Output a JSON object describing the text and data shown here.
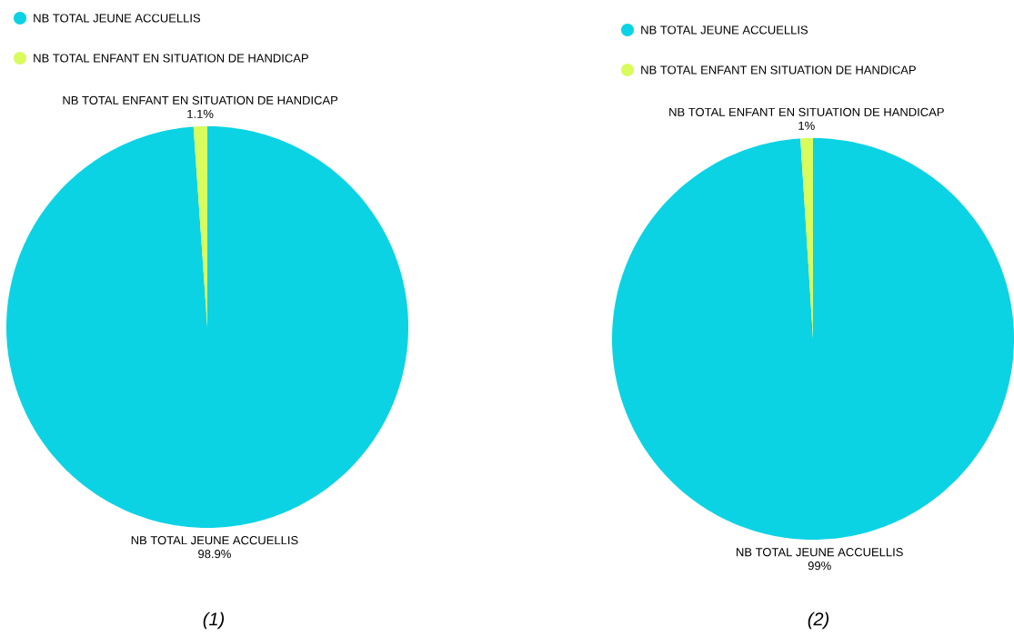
{
  "chart_data": [
    {
      "type": "pie",
      "categories": [
        "NB TOTAL JEUNE ACCUELLIS",
        "NB TOTAL ENFANT EN SITUATION DE HANDICAP"
      ],
      "values": [
        98.9,
        1.1
      ],
      "value_labels": [
        "98.9%",
        "1.1%"
      ],
      "colors": [
        "#0bd3e4",
        "#d9fb5c"
      ],
      "legend": "top left",
      "annotations": [
        "(1)"
      ]
    },
    {
      "type": "pie",
      "categories": [
        "NB TOTAL JEUNE ACCUELLIS",
        "NB TOTAL ENFANT EN SITUATION DE HANDICAP"
      ],
      "values": [
        99,
        1
      ],
      "value_labels": [
        "99%",
        "1%"
      ],
      "colors": [
        "#0bd3e4",
        "#d9fb5c"
      ],
      "legend": "top left",
      "annotations": [
        "(2)"
      ]
    }
  ]
}
